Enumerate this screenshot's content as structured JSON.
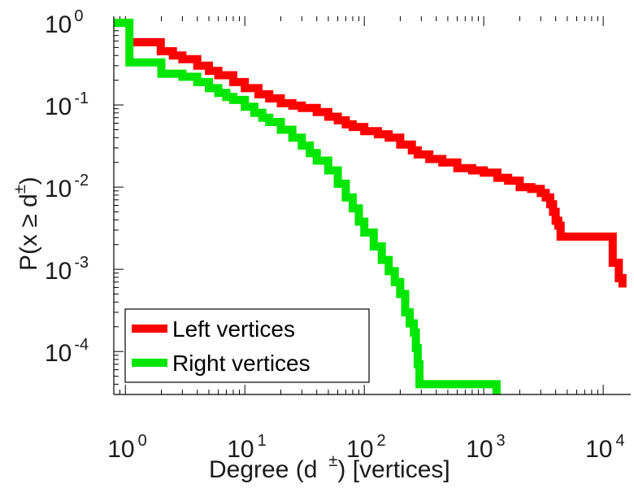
{
  "chart_data": {
    "type": "line",
    "scale": "log-log",
    "title": "",
    "xlabel": "Degree (d",
    "xlabel_sup": "±",
    "xlabel_suffix": ") [vertices]",
    "ylabel": "P(x ≥ d",
    "ylabel_sup": "±",
    "ylabel_suffix": ")",
    "xlim": [
      0.8,
      17000
    ],
    "ylim": [
      3e-05,
      1.2
    ],
    "x_ticks": [
      {
        "value": 1,
        "base": "10",
        "exp": "0"
      },
      {
        "value": 10,
        "base": "10",
        "exp": "1"
      },
      {
        "value": 100,
        "base": "10",
        "exp": "2"
      },
      {
        "value": 1000,
        "base": "10",
        "exp": "3"
      },
      {
        "value": 10000,
        "base": "10",
        "exp": "4"
      }
    ],
    "y_ticks": [
      {
        "value": 1,
        "base": "10",
        "exp": "0"
      },
      {
        "value": 0.1,
        "base": "10",
        "exp": "-1"
      },
      {
        "value": 0.01,
        "base": "10",
        "exp": "-2"
      },
      {
        "value": 0.001,
        "base": "10",
        "exp": "-3"
      },
      {
        "value": 0.0001,
        "base": "10",
        "exp": "-4"
      }
    ],
    "legend_position": "bottom-left",
    "series": [
      {
        "name": "Left vertices",
        "color": "#ff0000",
        "points": [
          [
            1.08,
            0.58
          ],
          [
            1.98,
            0.58
          ],
          [
            1.98,
            0.45
          ],
          [
            2.5,
            0.45
          ],
          [
            2.5,
            0.4
          ],
          [
            3,
            0.36
          ],
          [
            4,
            0.3
          ],
          [
            5,
            0.26
          ],
          [
            6,
            0.23
          ],
          [
            8,
            0.19
          ],
          [
            10,
            0.16
          ],
          [
            13,
            0.135
          ],
          [
            16,
            0.12
          ],
          [
            20,
            0.105
          ],
          [
            25,
            0.098
          ],
          [
            30,
            0.092
          ],
          [
            40,
            0.082
          ],
          [
            50,
            0.072
          ],
          [
            60,
            0.065
          ],
          [
            70,
            0.058
          ],
          [
            80,
            0.054
          ],
          [
            100,
            0.048
          ],
          [
            130,
            0.044
          ],
          [
            160,
            0.04
          ],
          [
            200,
            0.033
          ],
          [
            250,
            0.028
          ],
          [
            280,
            0.025
          ],
          [
            350,
            0.022
          ],
          [
            450,
            0.02
          ],
          [
            600,
            0.017
          ],
          [
            800,
            0.016
          ],
          [
            1000,
            0.015
          ],
          [
            1300,
            0.013
          ],
          [
            1600,
            0.012
          ],
          [
            2000,
            0.01
          ],
          [
            2500,
            0.0095
          ],
          [
            3000,
            0.0085
          ],
          [
            3300,
            0.0075
          ],
          [
            3600,
            0.0062
          ],
          [
            3800,
            0.005
          ],
          [
            4000,
            0.0039
          ],
          [
            4200,
            0.0034
          ],
          [
            4400,
            0.0025
          ],
          [
            12000,
            0.0025
          ],
          [
            12000,
            0.0012
          ],
          [
            13500,
            0.0012
          ],
          [
            13500,
            0.00078
          ],
          [
            14500,
            0.00078
          ],
          [
            14500,
            0.0006
          ]
        ]
      },
      {
        "name": "Right vertices",
        "color": "#00e600",
        "points": [
          [
            0.8,
            1.0
          ],
          [
            1.08,
            1.0
          ],
          [
            1.08,
            0.33
          ],
          [
            2.0,
            0.33
          ],
          [
            2.0,
            0.24
          ],
          [
            3,
            0.22
          ],
          [
            4,
            0.19
          ],
          [
            5,
            0.16
          ],
          [
            6,
            0.14
          ],
          [
            7,
            0.125
          ],
          [
            8,
            0.115
          ],
          [
            10,
            0.095
          ],
          [
            12,
            0.08
          ],
          [
            14,
            0.07
          ],
          [
            16,
            0.062
          ],
          [
            20,
            0.05
          ],
          [
            25,
            0.04
          ],
          [
            30,
            0.032
          ],
          [
            35,
            0.026
          ],
          [
            40,
            0.021
          ],
          [
            50,
            0.016
          ],
          [
            60,
            0.011
          ],
          [
            70,
            0.0075
          ],
          [
            80,
            0.0055
          ],
          [
            90,
            0.0038
          ],
          [
            100,
            0.0028
          ],
          [
            120,
            0.0019
          ],
          [
            140,
            0.0013
          ],
          [
            160,
            0.00095
          ],
          [
            180,
            0.0007
          ],
          [
            200,
            0.0005
          ],
          [
            220,
            0.0003
          ],
          [
            240,
            0.00022
          ],
          [
            260,
            0.00017
          ],
          [
            270,
            0.00011
          ],
          [
            280,
            7e-05
          ],
          [
            290,
            4e-05
          ],
          [
            1280,
            4e-05
          ],
          [
            1280,
            3e-05
          ]
        ]
      }
    ]
  }
}
